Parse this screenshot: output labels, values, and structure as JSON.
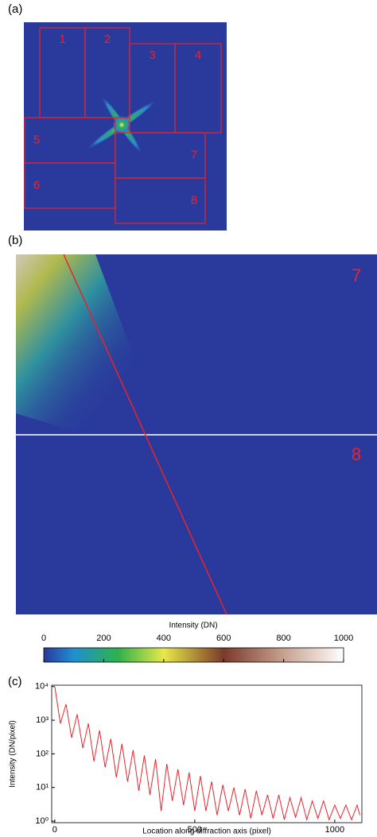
{
  "chart_data": [
    {
      "type": "image",
      "panel_label": "(a)",
      "region_labels": [
        "1",
        "2",
        "3",
        "4",
        "5",
        "6",
        "7",
        "8"
      ],
      "region_color": "#e8242a"
    },
    {
      "type": "image",
      "panel_label": "(b)",
      "region_labels": [
        "7",
        "8"
      ],
      "region_color": "#e8242a"
    },
    {
      "type": "colorbar",
      "title": "Intensity (DN)",
      "clim": [
        0,
        1000
      ],
      "ticks": [
        0,
        200,
        400,
        600,
        800,
        1000
      ]
    },
    {
      "type": "line",
      "panel_label": "(c)",
      "xlabel": "Location along diffraction axis (pixel)",
      "ylabel": "Intensity (DN/pixel)",
      "log_y": true,
      "xlim": [
        -11,
        1097
      ],
      "ylim": [
        0.9,
        11000
      ],
      "xticks": [
        0,
        500,
        1000
      ],
      "yticks": [
        {
          "value": 1,
          "label": "10⁰"
        },
        {
          "value": 10,
          "label": "10¹"
        },
        {
          "value": 100,
          "label": "10²"
        },
        {
          "value": 1000,
          "label": "10³"
        },
        {
          "value": 10000,
          "label": "10⁴"
        }
      ],
      "x": [
        0,
        20,
        40,
        60,
        80,
        100,
        120,
        140,
        160,
        180,
        200,
        220,
        240,
        260,
        280,
        300,
        320,
        340,
        360,
        380,
        400,
        420,
        440,
        460,
        480,
        500,
        520,
        540,
        560,
        580,
        600,
        620,
        640,
        660,
        680,
        700,
        720,
        740,
        760,
        780,
        800,
        820,
        840,
        860,
        880,
        900,
        920,
        940,
        960,
        980,
        1000,
        1020,
        1040,
        1060,
        1080,
        1090
      ],
      "series": [
        {
          "color": "#e8242a",
          "values": [
            10000,
            800,
            3000,
            300,
            1500,
            150,
            800,
            60,
            500,
            40,
            280,
            20,
            200,
            15,
            130,
            8,
            90,
            6,
            70,
            2,
            50,
            4,
            35,
            3,
            28,
            2,
            22,
            2,
            15,
            1.5,
            12,
            2,
            10,
            1.5,
            9,
            1.2,
            8,
            1.5,
            6,
            1.2,
            6,
            1.1,
            5,
            1.3,
            5,
            1.1,
            4,
            1.2,
            4,
            1.1,
            3,
            1.2,
            3,
            1.1,
            3,
            1.5
          ]
        }
      ]
    }
  ]
}
